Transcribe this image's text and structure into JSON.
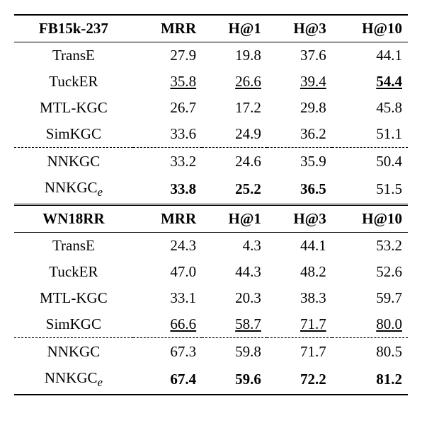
{
  "table1": {
    "header": {
      "dataset": "FB15k-237",
      "c1": "MRR",
      "c2": "H@1",
      "c3": "H@3",
      "c4": "H@10"
    },
    "rows": [
      {
        "name": "TransE",
        "mrr": "27.9",
        "h1": "19.8",
        "h3": "37.6",
        "h10": "44.1",
        "b": [
          0,
          0,
          0,
          0
        ],
        "u": [
          0,
          0,
          0,
          0
        ]
      },
      {
        "name": "TuckER",
        "mrr": "35.8",
        "h1": "26.6",
        "h3": "39.4",
        "h10": "54.4",
        "b": [
          0,
          0,
          0,
          1
        ],
        "u": [
          1,
          1,
          1,
          1
        ]
      },
      {
        "name": "MTL-KGC",
        "mrr": "26.7",
        "h1": "17.2",
        "h3": "29.8",
        "h10": "45.8",
        "b": [
          0,
          0,
          0,
          0
        ],
        "u": [
          0,
          0,
          0,
          0
        ]
      },
      {
        "name": "SimKGC",
        "mrr": "33.6",
        "h1": "24.9",
        "h3": "36.2",
        "h10": "51.1",
        "b": [
          0,
          0,
          0,
          0
        ],
        "u": [
          0,
          0,
          0,
          0
        ]
      }
    ],
    "rows2": [
      {
        "name": "NNKGC",
        "sub": "",
        "mrr": "33.2",
        "h1": "24.6",
        "h3": "35.9",
        "h10": "50.4",
        "b": [
          0,
          0,
          0,
          0
        ],
        "u": [
          0,
          0,
          0,
          0
        ]
      },
      {
        "name": "NNKGC",
        "sub": "e",
        "mrr": "33.8",
        "h1": "25.2",
        "h3": "36.5",
        "h10": "51.5",
        "b": [
          1,
          1,
          1,
          0
        ],
        "u": [
          0,
          0,
          0,
          0
        ]
      }
    ]
  },
  "table2": {
    "header": {
      "dataset": "WN18RR",
      "c1": "MRR",
      "c2": "H@1",
      "c3": "H@3",
      "c4": "H@10"
    },
    "rows": [
      {
        "name": "TransE",
        "mrr": "24.3",
        "h1": "4.3",
        "h3": "44.1",
        "h10": "53.2",
        "b": [
          0,
          0,
          0,
          0
        ],
        "u": [
          0,
          0,
          0,
          0
        ]
      },
      {
        "name": "TuckER",
        "mrr": "47.0",
        "h1": "44.3",
        "h3": "48.2",
        "h10": "52.6",
        "b": [
          0,
          0,
          0,
          0
        ],
        "u": [
          0,
          0,
          0,
          0
        ]
      },
      {
        "name": "MTL-KGC",
        "mrr": "33.1",
        "h1": "20.3",
        "h3": "38.3",
        "h10": "59.7",
        "b": [
          0,
          0,
          0,
          0
        ],
        "u": [
          0,
          0,
          0,
          0
        ]
      },
      {
        "name": "SimKGC",
        "mrr": "66.6",
        "h1": "58.7",
        "h3": "71.7",
        "h10": "80.0",
        "b": [
          0,
          0,
          0,
          0
        ],
        "u": [
          1,
          1,
          1,
          1
        ]
      }
    ],
    "rows2": [
      {
        "name": "NNKGC",
        "sub": "",
        "mrr": "67.3",
        "h1": "59.8",
        "h3": "71.7",
        "h10": "80.5",
        "b": [
          0,
          0,
          0,
          0
        ],
        "u": [
          0,
          0,
          0,
          0
        ]
      },
      {
        "name": "NNKGC",
        "sub": "e",
        "mrr": "67.4",
        "h1": "59.6",
        "h3": "72.2",
        "h10": "81.2",
        "b": [
          1,
          1,
          1,
          1
        ],
        "u": [
          0,
          0,
          0,
          0
        ]
      }
    ]
  }
}
